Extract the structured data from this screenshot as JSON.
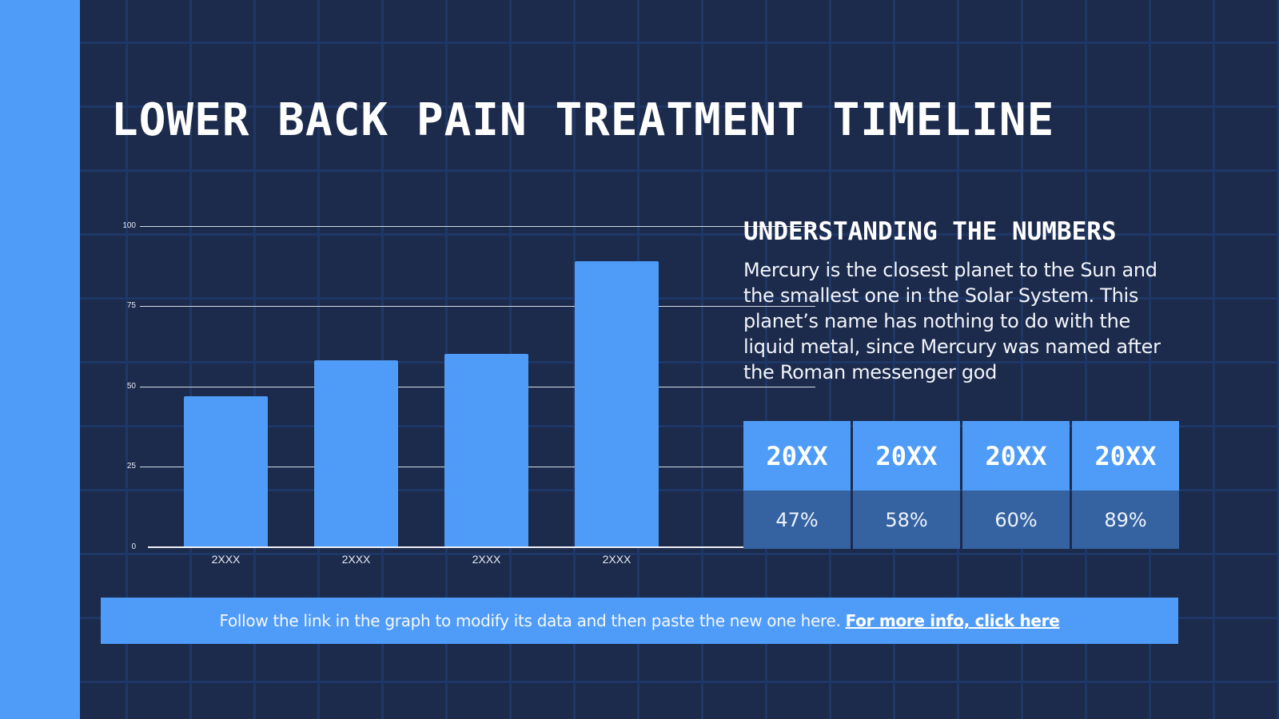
{
  "slide": {
    "title": "LOWER BACK PAIN TREATMENT TIMELINE",
    "colors": {
      "background": "#1c2a4b",
      "grid": "#1f3766",
      "accent": "#4f9cf8",
      "table_body": "#3563a2",
      "text": "#ffffff"
    }
  },
  "chart_data": {
    "type": "bar",
    "title": "",
    "xlabel": "",
    "ylabel": "",
    "categories": [
      "2XXX",
      "2XXX",
      "2XXX",
      "2XXX"
    ],
    "values": [
      47,
      58,
      60,
      89
    ],
    "ylim": [
      0,
      100
    ],
    "yticks": [
      "0",
      "25",
      "50",
      "75",
      "100"
    ],
    "grid": true,
    "legend": "none",
    "bar_color": "#4f9cf8"
  },
  "info": {
    "heading": "UNDERSTANDING THE NUMBERS",
    "body": "Mercury is the closest planet to the Sun and the smallest one in the Solar System. This planet’s name has nothing to do with the liquid metal, since Mercury was named after the Roman messenger god"
  },
  "table": {
    "columns": [
      {
        "year": "20XX",
        "value": "47%"
      },
      {
        "year": "20XX",
        "value": "58%"
      },
      {
        "year": "20XX",
        "value": "60%"
      },
      {
        "year": "20XX",
        "value": "89%"
      }
    ]
  },
  "footer": {
    "text": "Follow the link in the graph to modify its data and then paste the new one here.",
    "link_label": "For more info, click here"
  }
}
